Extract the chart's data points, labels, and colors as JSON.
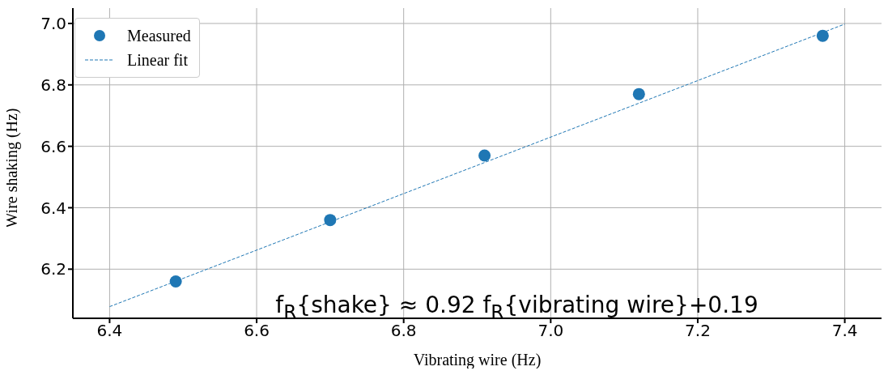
{
  "chart_data": {
    "type": "scatter",
    "xlabel": "Vibrating wire (Hz)",
    "ylabel": "Wire shaking (Hz)",
    "xlim": [
      6.35,
      7.45
    ],
    "xticks": [
      {
        "value": 6.4,
        "label": "6.4"
      },
      {
        "value": 6.6,
        "label": "6.6"
      },
      {
        "value": 6.8,
        "label": "6.8"
      },
      {
        "value": 7.0,
        "label": "7.0"
      },
      {
        "value": 7.2,
        "label": "7.2"
      },
      {
        "value": 7.4,
        "label": "7.4"
      }
    ],
    "ylim": [
      6.04,
      7.05
    ],
    "yticks": [
      {
        "value": 6.2,
        "label": "6.2"
      },
      {
        "value": 6.4,
        "label": "6.4"
      },
      {
        "value": 6.6,
        "label": "6.6"
      },
      {
        "value": 6.8,
        "label": "6.8"
      },
      {
        "value": 7.0,
        "label": "7.0"
      }
    ],
    "series": [
      {
        "name": "Measured",
        "color": "#1f77b4",
        "marker": "circle",
        "x": [
          6.49,
          6.7,
          6.91,
          7.12,
          7.37
        ],
        "values": [
          6.16,
          6.36,
          6.57,
          6.77,
          6.96
        ]
      },
      {
        "name": "Linear fit",
        "type": "line",
        "color": "#1f77b4",
        "line_style": "dashed",
        "marker": "none",
        "x": [
          6.4,
          7.4
        ],
        "values": [
          6.078,
          6.998
        ]
      }
    ],
    "annotations": [
      "f$_{R}${shake} ≈ 0.92 f$_{R}${vibrating wire}+0.19"
    ],
    "grid": true,
    "legend": "top left"
  }
}
